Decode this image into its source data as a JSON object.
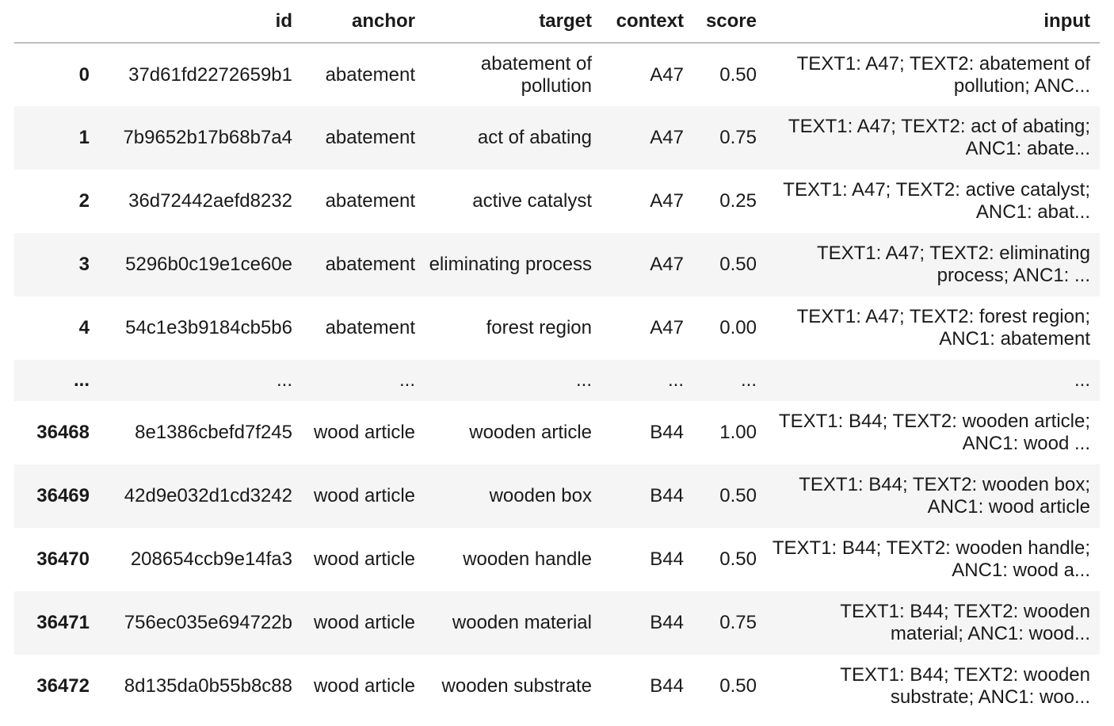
{
  "table": {
    "columns": [
      "",
      "id",
      "anchor",
      "target",
      "context",
      "score",
      "input"
    ],
    "rows_top": [
      {
        "index": "0",
        "id": "37d61fd2272659b1",
        "anchor": "abatement",
        "target": "abatement of pollution",
        "context": "A47",
        "score": "0.50",
        "input": "TEXT1: A47; TEXT2: abatement of pollution; ANC..."
      },
      {
        "index": "1",
        "id": "7b9652b17b68b7a4",
        "anchor": "abatement",
        "target": "act of abating",
        "context": "A47",
        "score": "0.75",
        "input": "TEXT1: A47; TEXT2: act of abating; ANC1: abate..."
      },
      {
        "index": "2",
        "id": "36d72442aefd8232",
        "anchor": "abatement",
        "target": "active catalyst",
        "context": "A47",
        "score": "0.25",
        "input": "TEXT1: A47; TEXT2: active catalyst; ANC1: abat..."
      },
      {
        "index": "3",
        "id": "5296b0c19e1ce60e",
        "anchor": "abatement",
        "target": "eliminating process",
        "context": "A47",
        "score": "0.50",
        "input": "TEXT1: A47; TEXT2: eliminating process; ANC1: ..."
      },
      {
        "index": "4",
        "id": "54c1e3b9184cb5b6",
        "anchor": "abatement",
        "target": "forest region",
        "context": "A47",
        "score": "0.00",
        "input": "TEXT1: A47; TEXT2: forest region; ANC1: abatement"
      }
    ],
    "ellipsis": {
      "index": "...",
      "id": "...",
      "anchor": "...",
      "target": "...",
      "context": "...",
      "score": "...",
      "input": "..."
    },
    "rows_bottom": [
      {
        "index": "36468",
        "id": "8e1386cbefd7f245",
        "anchor": "wood article",
        "target": "wooden article",
        "context": "B44",
        "score": "1.00",
        "input": "TEXT1: B44; TEXT2: wooden article; ANC1: wood ..."
      },
      {
        "index": "36469",
        "id": "42d9e032d1cd3242",
        "anchor": "wood article",
        "target": "wooden box",
        "context": "B44",
        "score": "0.50",
        "input": "TEXT1: B44; TEXT2: wooden box; ANC1: wood article"
      },
      {
        "index": "36470",
        "id": "208654ccb9e14fa3",
        "anchor": "wood article",
        "target": "wooden handle",
        "context": "B44",
        "score": "0.50",
        "input": "TEXT1: B44; TEXT2: wooden handle; ANC1: wood a..."
      },
      {
        "index": "36471",
        "id": "756ec035e694722b",
        "anchor": "wood article",
        "target": "wooden material",
        "context": "B44",
        "score": "0.75",
        "input": "TEXT1: B44; TEXT2: wooden material; ANC1: wood..."
      },
      {
        "index": "36472",
        "id": "8d135da0b55b8c88",
        "anchor": "wood article",
        "target": "wooden substrate",
        "context": "B44",
        "score": "0.50",
        "input": "TEXT1: B44; TEXT2: wooden substrate; ANC1: woo..."
      }
    ]
  }
}
